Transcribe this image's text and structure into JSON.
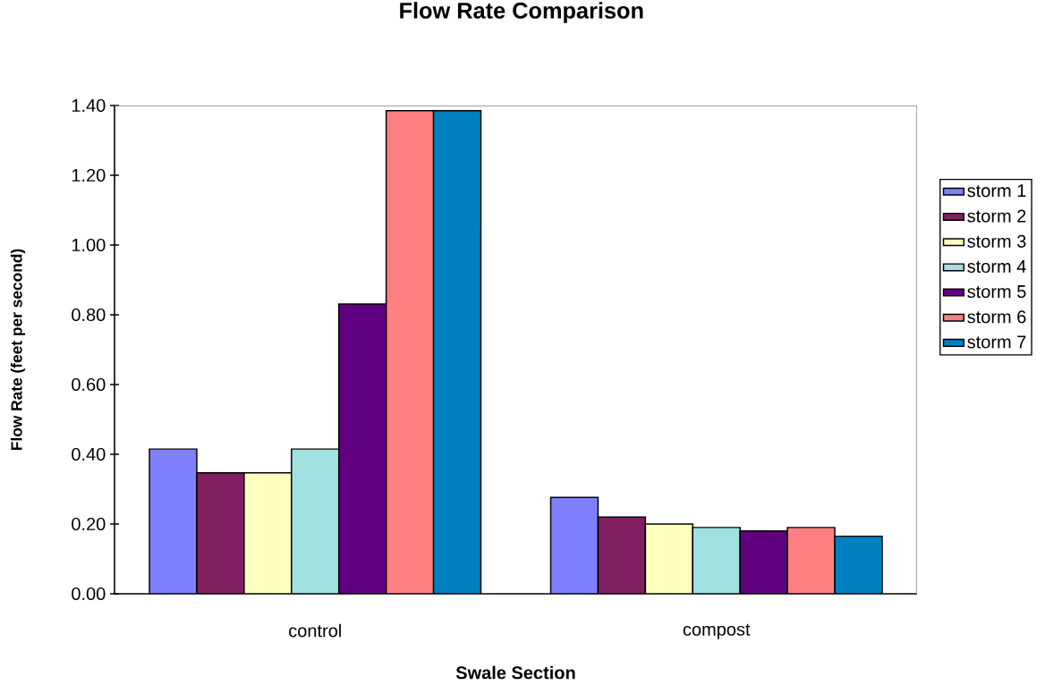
{
  "chart_data": {
    "type": "bar",
    "title": "Flow Rate Comparison",
    "xlabel": "Swale Section",
    "ylabel": "Flow Rate (feet per second)",
    "categories": [
      "control",
      "compost"
    ],
    "series": [
      {
        "name": "storm 1",
        "color": "#8080ff",
        "values": [
          0.415,
          0.276
        ]
      },
      {
        "name": "storm 2",
        "color": "#802060",
        "values": [
          0.347,
          0.22
        ]
      },
      {
        "name": "storm 3",
        "color": "#ffffc0",
        "values": [
          0.347,
          0.2
        ]
      },
      {
        "name": "storm 4",
        "color": "#a0e0e0",
        "values": [
          0.415,
          0.19
        ]
      },
      {
        "name": "storm 5",
        "color": "#600080",
        "values": [
          0.831,
          0.18
        ]
      },
      {
        "name": "storm 6",
        "color": "#ff8080",
        "values": [
          1.385,
          0.19
        ]
      },
      {
        "name": "storm 7",
        "color": "#0080c0",
        "values": [
          1.385,
          0.165
        ]
      }
    ],
    "ylim": [
      0,
      1.4
    ],
    "yticks": [
      {
        "value": 0,
        "label": "0.00"
      },
      {
        "value": 0.2,
        "label": "0.20"
      },
      {
        "value": 0.4,
        "label": "0.40"
      },
      {
        "value": 0.6,
        "label": "0.60"
      },
      {
        "value": 0.8,
        "label": "0.80"
      },
      {
        "value": 1.0,
        "label": "1.00"
      },
      {
        "value": 1.2,
        "label": "1.20"
      },
      {
        "value": 1.4,
        "label": "1.40"
      }
    ],
    "legend": "right",
    "grid": false
  }
}
